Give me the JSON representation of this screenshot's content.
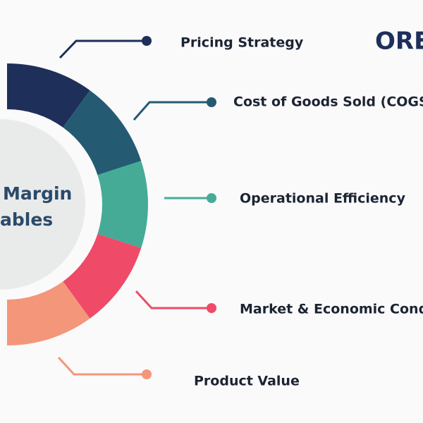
{
  "center_title": {
    "line1": "Margin",
    "line2": "ables"
  },
  "logo": "ORE",
  "items": [
    {
      "label": "Pricing Strategy"
    },
    {
      "label": "Cost of Goods Sold (COGS)"
    },
    {
      "label": "Operational Efficiency"
    },
    {
      "label": "Market & Economic Conditions"
    },
    {
      "label": "Product Value"
    }
  ]
}
